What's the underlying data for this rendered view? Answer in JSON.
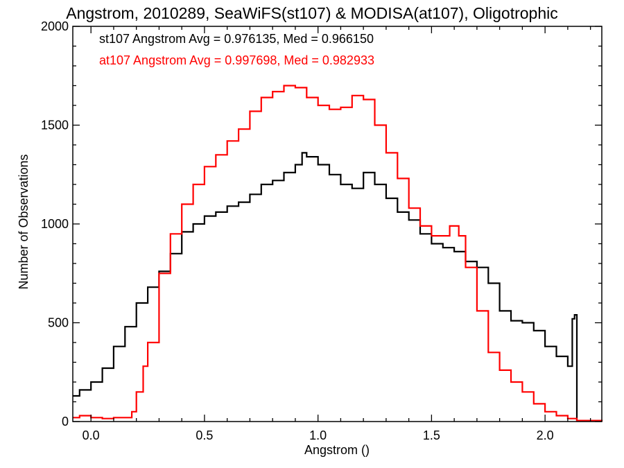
{
  "chart_data": {
    "type": "line",
    "title": "Angstrom, 2010289, SeaWiFS(st107) & MODISA(at107), Oligotrophic",
    "xlabel": "Angstrom ()",
    "ylabel": "Number of Observations",
    "xlim": [
      -0.08,
      2.25
    ],
    "ylim": [
      0,
      2000
    ],
    "x_ticks": [
      0.0,
      0.5,
      1.0,
      1.5,
      2.0
    ],
    "x_tick_labels": [
      "0.0",
      "0.5",
      "1.0",
      "1.5",
      "2.0"
    ],
    "y_ticks": [
      0,
      500,
      1000,
      1500,
      2000
    ],
    "y_tick_labels": [
      "0",
      "500",
      "1000",
      "1500",
      "2000"
    ],
    "grid": false,
    "legend_placement": "top-left",
    "series": [
      {
        "name": "st107",
        "annotation": "st107 Angstrom Avg = 0.976135, Med = 0.966150",
        "color": "#000000",
        "x": [
          -0.08,
          -0.05,
          0.0,
          0.05,
          0.1,
          0.15,
          0.2,
          0.25,
          0.3,
          0.35,
          0.4,
          0.45,
          0.5,
          0.55,
          0.6,
          0.65,
          0.7,
          0.75,
          0.8,
          0.85,
          0.9,
          0.93,
          0.95,
          1.0,
          1.05,
          1.1,
          1.15,
          1.2,
          1.25,
          1.3,
          1.35,
          1.4,
          1.45,
          1.5,
          1.55,
          1.6,
          1.65,
          1.7,
          1.75,
          1.8,
          1.85,
          1.9,
          1.95,
          2.0,
          2.05,
          2.1,
          2.12,
          2.13,
          2.14
        ],
        "y": [
          130,
          160,
          200,
          270,
          380,
          480,
          600,
          680,
          760,
          850,
          960,
          1000,
          1040,
          1060,
          1090,
          1110,
          1150,
          1200,
          1220,
          1260,
          1300,
          1360,
          1340,
          1300,
          1250,
          1200,
          1180,
          1260,
          1200,
          1130,
          1060,
          1020,
          950,
          900,
          880,
          860,
          810,
          780,
          700,
          560,
          510,
          500,
          460,
          380,
          330,
          280,
          520,
          540,
          0
        ]
      },
      {
        "name": "at107",
        "annotation": "at107 Angstrom Avg = 0.997698, Med = 0.982933",
        "color": "#ff0000",
        "x": [
          -0.08,
          -0.05,
          0.0,
          0.05,
          0.1,
          0.15,
          0.18,
          0.2,
          0.23,
          0.25,
          0.3,
          0.35,
          0.4,
          0.45,
          0.5,
          0.55,
          0.6,
          0.65,
          0.7,
          0.75,
          0.8,
          0.85,
          0.9,
          0.95,
          1.0,
          1.05,
          1.1,
          1.15,
          1.2,
          1.25,
          1.3,
          1.35,
          1.4,
          1.45,
          1.5,
          1.55,
          1.58,
          1.62,
          1.65,
          1.7,
          1.75,
          1.8,
          1.85,
          1.9,
          1.95,
          2.0,
          2.05,
          2.1,
          2.14,
          2.25
        ],
        "y": [
          20,
          30,
          20,
          15,
          20,
          20,
          50,
          150,
          280,
          400,
          750,
          950,
          1100,
          1200,
          1290,
          1350,
          1420,
          1480,
          1570,
          1640,
          1670,
          1700,
          1690,
          1640,
          1600,
          1580,
          1590,
          1650,
          1630,
          1500,
          1360,
          1230,
          1080,
          990,
          940,
          940,
          990,
          940,
          780,
          560,
          350,
          260,
          200,
          150,
          90,
          50,
          30,
          15,
          5,
          0
        ]
      }
    ]
  }
}
